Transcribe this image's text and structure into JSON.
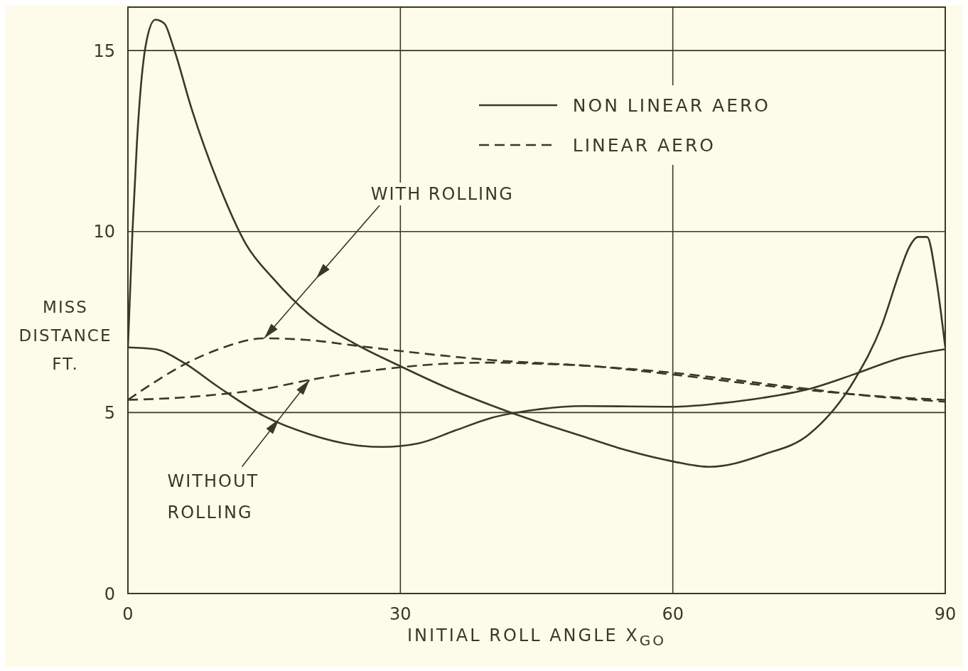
{
  "chart_data": {
    "type": "line",
    "xlabel": "INITIAL ROLL ANGLE X$_{GO}$",
    "ylabel": "MISS DISTANCE FT.",
    "xlim": [
      0,
      90
    ],
    "xticks": [
      0,
      30,
      60,
      90
    ],
    "ylim": [
      0,
      16.2
    ],
    "yticks": [
      0,
      5,
      10,
      15
    ],
    "grid": true,
    "legend": "top right",
    "marker": "none",
    "series": [
      {
        "name": "NON LINEAR AERO",
        "color": "#3a3829",
        "line_style": "solid",
        "x": [
          0,
          0.5,
          1,
          2,
          3,
          4,
          5,
          7,
          10,
          13,
          16,
          20,
          25,
          30,
          35,
          40,
          45,
          50,
          55,
          60,
          64,
          70,
          75,
          80,
          83,
          85,
          86,
          87,
          88,
          89,
          90
        ],
        "values": [
          6.8,
          10,
          12.5,
          15.2,
          15.85,
          15.75,
          15.1,
          13.4,
          11.3,
          9.65,
          8.7,
          7.7,
          6.9,
          6.28,
          5.7,
          5.2,
          4.75,
          4.35,
          3.95,
          3.65,
          3.5,
          3.84,
          4.4,
          5.9,
          7.4,
          8.9,
          9.55,
          9.85,
          9.85,
          8.7,
          6.8
        ]
      },
      {
        "color": "#3a3829",
        "line_style": "solid",
        "x": [
          0,
          3,
          6,
          10,
          15,
          20,
          25,
          28,
          32,
          36,
          40,
          45,
          50,
          55,
          60,
          65,
          70,
          75,
          80,
          85,
          90
        ],
        "values": [
          6.8,
          6.75,
          6.4,
          5.7,
          4.9,
          4.4,
          4.1,
          4.05,
          4.15,
          4.5,
          4.85,
          5.08,
          5.18,
          5.17,
          5.16,
          5.25,
          5.41,
          5.65,
          6.06,
          6.5,
          6.75
        ]
      },
      {
        "name": "LINEAR AERO",
        "color": "#3a3829",
        "line_style": "dashed",
        "x": [
          0,
          3,
          6,
          10,
          15,
          20,
          25,
          30,
          40,
          50,
          60,
          70,
          75,
          80,
          90
        ],
        "values": [
          5.35,
          5.85,
          6.3,
          6.75,
          7.05,
          7.0,
          6.85,
          6.7,
          6.45,
          6.3,
          6.1,
          5.8,
          5.65,
          5.5,
          5.3
        ]
      },
      {
        "color": "#3a3829",
        "line_style": "dashed",
        "x": [
          0,
          5,
          10,
          15,
          20,
          25,
          30,
          35,
          40,
          45,
          50,
          60,
          70,
          75,
          80,
          90
        ],
        "values": [
          5.35,
          5.4,
          5.5,
          5.65,
          5.9,
          6.1,
          6.25,
          6.35,
          6.38,
          6.35,
          6.3,
          6.05,
          5.75,
          5.62,
          5.5,
          5.35
        ]
      }
    ],
    "annotations": [
      {
        "text": "WITH ROLLING",
        "x": 15,
        "y": 7.05
      },
      {
        "text": "WITHOUT ROLLING",
        "x": 20,
        "y": 5.9
      }
    ]
  }
}
